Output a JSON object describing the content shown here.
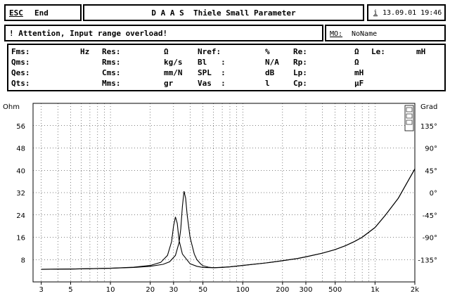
{
  "header": {
    "esc_key": "ESC",
    "end_label": "End",
    "title": "D A A S  Thiele Small Parameter",
    "info_key": "i",
    "datetime": "13.09.01 19:46"
  },
  "status": {
    "message": "! Attention, Input range overload!",
    "mo_label": "MO:",
    "mo_value": "NoName"
  },
  "params": {
    "col1": [
      {
        "name": "Fms:",
        "unit": "Hz"
      },
      {
        "name": "Qms:",
        "unit": ""
      },
      {
        "name": "Qes:",
        "unit": ""
      },
      {
        "name": "Qts:",
        "unit": ""
      }
    ],
    "col2": [
      {
        "name": "Res:",
        "unit": "Ω"
      },
      {
        "name": "Rms:",
        "unit": "kg/s"
      },
      {
        "name": "Cms:",
        "unit": "mm/N"
      },
      {
        "name": "Mms:",
        "unit": "gr"
      }
    ],
    "col3": [
      {
        "name": "Nref:",
        "unit": "%"
      },
      {
        "name": "Bl   :",
        "unit": "N/A"
      },
      {
        "name": "SPL  :",
        "unit": "dB"
      },
      {
        "name": "Vas  :",
        "unit": "l"
      }
    ],
    "col4": [
      {
        "name": "Re:",
        "unit": "Ω"
      },
      {
        "name": "Rp:",
        "unit": "Ω"
      },
      {
        "name": "Lp:",
        "unit": "mH"
      },
      {
        "name": "Cp:",
        "unit": "µF"
      }
    ],
    "col5": [
      {
        "name": "Le:",
        "unit": "mH"
      }
    ]
  },
  "chart_data": {
    "type": "line",
    "ylabel_left": "Ohm",
    "ylabel_right": "Grad",
    "x_scale": "log",
    "xlim": [
      2.6,
      2000
    ],
    "ylim_left": [
      0,
      64
    ],
    "ylim_right": [
      -180,
      180
    ],
    "x_ticks": [
      3,
      5,
      10,
      20,
      30,
      50,
      100,
      200,
      300,
      500,
      1000,
      2000
    ],
    "x_tick_labels": [
      "3",
      "5",
      "10",
      "20",
      "30",
      "50",
      "100",
      "200",
      "300",
      "500",
      "1k",
      "2k"
    ],
    "y_left_ticks": [
      8,
      16,
      24,
      32,
      40,
      48,
      56
    ],
    "y_left_labels": [
      "8",
      "16",
      "24",
      "32",
      "40",
      "48",
      "56"
    ],
    "y_right_ticks": [
      -135,
      -90,
      -45,
      0,
      45,
      90,
      135
    ],
    "y_right_labels": [
      "-135°",
      "-90°",
      "-45°",
      "0°",
      "45°",
      "90°",
      "135°"
    ],
    "grid": true,
    "series": [
      {
        "x": [
          3,
          5,
          10,
          15,
          20,
          24,
          27,
          29,
          30,
          31,
          32,
          33,
          35,
          40,
          45,
          50,
          60,
          80,
          100,
          150,
          200,
          260,
          300,
          400,
          500,
          600,
          700,
          800,
          1000,
          1200,
          1500,
          2000
        ],
        "y": [
          4.5,
          4.6,
          4.9,
          5.3,
          5.9,
          7.0,
          9.5,
          14.5,
          20.0,
          23.3,
          21.0,
          15.0,
          10.0,
          6.5,
          5.6,
          5.2,
          5.1,
          5.4,
          5.9,
          6.8,
          7.6,
          8.4,
          9.0,
          10.3,
          11.6,
          13.0,
          14.5,
          16.0,
          19.5,
          24.0,
          30.0,
          40.5
        ]
      },
      {
        "x": [
          3,
          5,
          10,
          15,
          20,
          25,
          28,
          31,
          33,
          34,
          35,
          36,
          37,
          38,
          40,
          43,
          45,
          48,
          50,
          55,
          60,
          70,
          80,
          100,
          150,
          200,
          260,
          300,
          400,
          500,
          600,
          700,
          800,
          1000,
          1200,
          1500,
          2000
        ],
        "y": [
          4.5,
          4.6,
          4.9,
          5.2,
          5.6,
          6.3,
          7.2,
          9.5,
          14.0,
          19.0,
          27.0,
          32.5,
          30.0,
          24.0,
          16.0,
          10.0,
          8.0,
          6.5,
          5.8,
          5.3,
          5.1,
          5.2,
          5.4,
          5.9,
          6.8,
          7.6,
          8.4,
          9.0,
          10.3,
          11.6,
          13.0,
          14.5,
          16.0,
          19.5,
          24.0,
          30.0,
          40.5
        ]
      }
    ]
  }
}
